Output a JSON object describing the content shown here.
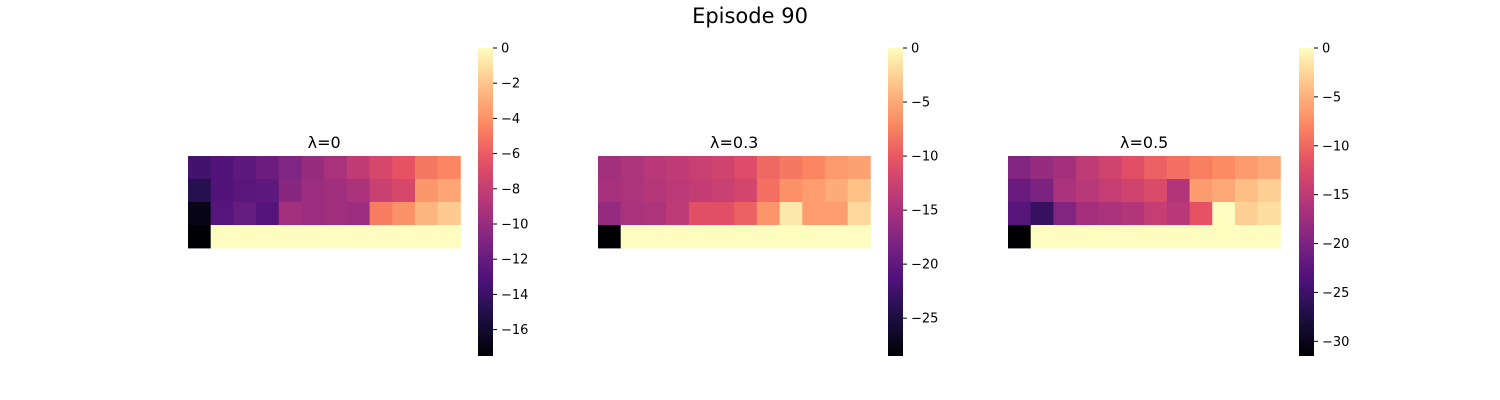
{
  "figure": {
    "title": "Episode 90"
  },
  "chart_data": [
    {
      "type": "heatmap",
      "title": "λ=0",
      "colormap": "magma",
      "vmin": -17.5,
      "vmax": 0,
      "colorbar_ticks": [
        0,
        -2,
        -4,
        -6,
        -8,
        -10,
        -12,
        -14,
        -16
      ],
      "colorbar_tick_labels": [
        "0",
        "−2",
        "−4",
        "−6",
        "−8",
        "−10",
        "−12",
        "−14",
        "−16"
      ],
      "rows": 4,
      "cols": 12,
      "values": [
        [
          -13.6,
          -13.0,
          -12.4,
          -11.8,
          -10.9,
          -10.0,
          -9.2,
          -8.2,
          -7.2,
          -6.4,
          -5.0,
          -4.4
        ],
        [
          -14.8,
          -13.0,
          -12.6,
          -12.4,
          -10.6,
          -9.8,
          -9.6,
          -9.1,
          -7.8,
          -7.2,
          -3.8,
          -3.2
        ],
        [
          -16.8,
          -12.8,
          -12.1,
          -12.9,
          -9.5,
          -9.8,
          -9.6,
          -9.8,
          -4.8,
          -4.0,
          -2.6,
          -1.8
        ],
        [
          -17.5,
          0,
          0,
          0,
          0,
          0,
          0,
          0,
          0,
          0,
          0,
          0
        ]
      ]
    },
    {
      "type": "heatmap",
      "title": "λ=0.3",
      "colormap": "magma",
      "vmin": -28.5,
      "vmax": 0,
      "colorbar_ticks": [
        0,
        -5,
        -10,
        -15,
        -20,
        -25
      ],
      "colorbar_tick_labels": [
        "0",
        "−5",
        "−10",
        "−15",
        "−20",
        "−25"
      ],
      "rows": 4,
      "cols": 12,
      "values": [
        [
          -15.5,
          -14.8,
          -14.0,
          -13.5,
          -12.8,
          -12.3,
          -11.2,
          -9.0,
          -8.0,
          -7.2,
          -6.0,
          -5.5
        ],
        [
          -15.2,
          -14.8,
          -14.2,
          -13.8,
          -13.2,
          -12.8,
          -12.0,
          -8.6,
          -6.5,
          -5.8,
          -4.8,
          -3.5
        ],
        [
          -16.4,
          -15.0,
          -14.8,
          -13.6,
          -10.8,
          -10.8,
          -9.4,
          -6.2,
          -1.2,
          -5.8,
          -5.8,
          -2.2
        ],
        [
          -28.5,
          0,
          0,
          0,
          0,
          0,
          0,
          0,
          0,
          0,
          0,
          0
        ]
      ]
    },
    {
      "type": "heatmap",
      "title": "λ=0.5",
      "colormap": "magma",
      "vmin": -31.5,
      "vmax": 0,
      "colorbar_ticks": [
        0,
        -5,
        -10,
        -15,
        -20,
        -25,
        -30
      ],
      "colorbar_tick_labels": [
        "0",
        "−5",
        "−10",
        "−15",
        "−20",
        "−25",
        "−30"
      ],
      "rows": 4,
      "cols": 12,
      "values": [
        [
          -19.5,
          -18.0,
          -17.0,
          -15.0,
          -13.5,
          -12.0,
          -10.5,
          -9.5,
          -8.5,
          -7.5,
          -6.5,
          -5.5
        ],
        [
          -21.5,
          -20.0,
          -16.5,
          -15.5,
          -14.5,
          -13.5,
          -12.5,
          -16.0,
          -6.5,
          -5.5,
          -4.0,
          -3.0
        ],
        [
          -23.0,
          -25.5,
          -19.5,
          -17.0,
          -16.5,
          -16.0,
          -14.5,
          -15.5,
          -11.5,
          0,
          -3.0,
          -2.0
        ],
        [
          -31.5,
          0,
          0,
          0,
          0,
          0,
          0,
          0,
          0,
          0,
          0,
          0
        ]
      ]
    }
  ]
}
